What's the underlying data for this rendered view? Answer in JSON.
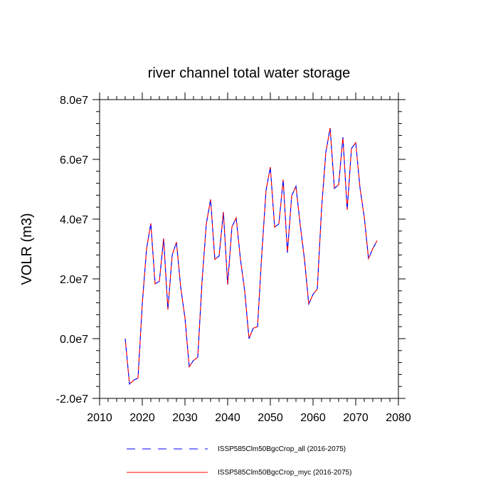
{
  "chart_data": {
    "type": "line",
    "title": "river channel total water storage",
    "xlabel": "",
    "ylabel": "VOLR  (m3)",
    "xlim": [
      2010,
      2080
    ],
    "ylim": [
      -20000000,
      80000000
    ],
    "x_ticks": [
      2010,
      2020,
      2030,
      2040,
      2050,
      2060,
      2070,
      2080
    ],
    "y_ticks": [
      -20000000,
      0,
      20000000,
      40000000,
      60000000,
      80000000
    ],
    "x_tick_labels": [
      "2010",
      "2020",
      "2030",
      "2040",
      "2050",
      "2060",
      "2070",
      "2080"
    ],
    "y_tick_labels": [
      "-2.0e7",
      "0.0e7",
      "2.0e7",
      "4.0e7",
      "6.0e7",
      "8.0e7"
    ],
    "grid": false,
    "legend_position": "bottom",
    "x": [
      2016,
      2017,
      2018,
      2019,
      2020,
      2021,
      2022,
      2023,
      2024,
      2025,
      2026,
      2027,
      2028,
      2029,
      2030,
      2031,
      2032,
      2033,
      2034,
      2035,
      2036,
      2037,
      2038,
      2039,
      2040,
      2041,
      2042,
      2043,
      2044,
      2045,
      2046,
      2047,
      2048,
      2049,
      2050,
      2051,
      2052,
      2053,
      2054,
      2055,
      2056,
      2057,
      2058,
      2059,
      2060,
      2061,
      2062,
      2063,
      2064,
      2065,
      2066,
      2067,
      2068,
      2069,
      2070,
      2071,
      2072,
      2073,
      2074,
      2075
    ],
    "series": [
      {
        "name": "ISSP585Clm50BgcCrop_all (2016-2075)",
        "color": "#0000ff",
        "dash": "dashed",
        "values": [
          0,
          -15200000,
          -13900000,
          -13200000,
          11700000,
          30000000,
          38600000,
          18300000,
          19200000,
          33500000,
          9700000,
          27900000,
          32300000,
          17200000,
          6900000,
          -9400000,
          -7300000,
          -6200000,
          19200000,
          38400000,
          46600000,
          26500000,
          27700000,
          42400000,
          18100000,
          37400000,
          40400000,
          26500000,
          15900000,
          0,
          3500000,
          4000000,
          28400000,
          49700000,
          57400000,
          37300000,
          38400000,
          53200000,
          28800000,
          47800000,
          51000000,
          38100000,
          26500000,
          11600000,
          14800000,
          16600000,
          43500000,
          62300000,
          70500000,
          50300000,
          51500000,
          67400000,
          43100000,
          63600000,
          65600000,
          50500000,
          40700000,
          26800000,
          30100000,
          32800000
        ]
      },
      {
        "name": "ISSP585Clm50BgcCrop_myc (2016-2075)",
        "color": "#ff0000",
        "dash": "solid",
        "values": [
          0,
          -15200000,
          -13900000,
          -13200000,
          11700000,
          30000000,
          38600000,
          18300000,
          19200000,
          33500000,
          9700000,
          27900000,
          32300000,
          17200000,
          6900000,
          -9400000,
          -7300000,
          -6200000,
          19200000,
          38400000,
          46600000,
          26500000,
          27700000,
          42400000,
          18100000,
          37400000,
          40400000,
          26500000,
          15900000,
          0,
          3500000,
          4000000,
          28400000,
          49700000,
          57400000,
          37300000,
          38400000,
          53200000,
          28800000,
          47800000,
          51000000,
          38100000,
          26500000,
          11600000,
          14800000,
          16600000,
          43500000,
          62300000,
          70500000,
          50300000,
          51500000,
          67400000,
          43100000,
          63600000,
          65600000,
          50500000,
          40700000,
          26800000,
          30100000,
          32800000
        ]
      }
    ]
  }
}
